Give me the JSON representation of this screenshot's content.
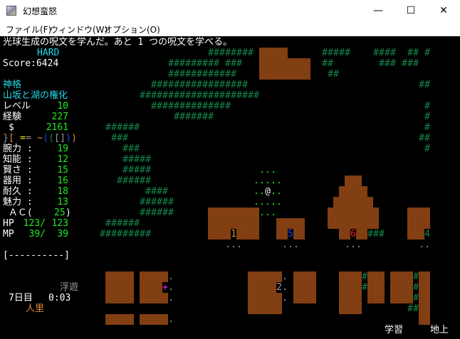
{
  "window": {
    "title": "幻想蛮怒",
    "controls": {
      "minimize": "—",
      "maximize": "☐",
      "close": "✕"
    }
  },
  "menu": [
    "ファイル(F)",
    "ウィンドウ(W)",
    "オプション(O)"
  ],
  "message": "光球生成の呪文を学んだ。あと 1 つの呪文を学べる。",
  "panel": {
    "difficulty": "HARD",
    "score": "Score:6424",
    "title": "神格",
    "race": "山坂と湖の権化",
    "level": {
      "label": "レベル",
      "value": "10"
    },
    "exp": {
      "label": "経験",
      "value": "227"
    },
    "gold": {
      "label": "$",
      "value": "2161"
    },
    "equipment": [
      {
        "ch": "}",
        "color": "#9a9a9a"
      },
      {
        "ch": "[",
        "color": "#e08a3a"
      },
      {
        "ch": " ",
        "color": "#000000"
      },
      {
        "ch": "=",
        "color": "#f0e020"
      },
      {
        "ch": "=",
        "color": "#9a9a9a"
      },
      {
        "ch": " ",
        "color": "#000000"
      },
      {
        "ch": "~",
        "color": "#e08a3a"
      },
      {
        "ch": "(",
        "color": "#2040ff"
      },
      {
        "ch": "(",
        "color": "#12874a"
      },
      {
        "ch": "[",
        "color": "#9a9a9a"
      },
      {
        "ch": "]",
        "color": "#9a9a9a"
      },
      {
        "ch": ")",
        "color": "#2040ff"
      },
      {
        "ch": ")",
        "color": "#e08a3a"
      }
    ],
    "stats": [
      {
        "label": "腕力 :",
        "value": "19"
      },
      {
        "label": "知能 :",
        "value": "12"
      },
      {
        "label": "賢さ :",
        "value": "15"
      },
      {
        "label": "器用 :",
        "value": "16"
      },
      {
        "label": "耐久 :",
        "value": "18"
      },
      {
        "label": "魅力 :",
        "value": "13"
      }
    ],
    "ac": {
      "label": " ＡＣ(",
      "value": "25",
      "close": ")"
    },
    "hp": {
      "label": "HP",
      "current": "123/",
      "max": "123"
    },
    "mp": {
      "label": "MP",
      "current": "39/",
      "max": "39"
    },
    "health_bar": "[----------]",
    "status": "浮遊",
    "day": "7日目",
    "time": "0:03",
    "location": "人里"
  },
  "bottom_status": {
    "study": "学習",
    "depth": "地上"
  },
  "map": {
    "tiles": {
      "#": {
        "glyph": "#",
        "color": "#12874a",
        "name": "tree-tile"
      },
      "%": {
        "glyph": "",
        "color": "#c8651f",
        "name": "wall-tile"
      },
      ".": {
        "glyph": ".",
        "color": "#22e822",
        "name": "lit-floor-tile"
      },
      ",": {
        "glyph": ".",
        "color": "#9a9a9a",
        "name": "floor-tile"
      },
      "@": {
        "glyph": "@",
        "color": "#ffffff",
        "name": "player"
      },
      "+": {
        "glyph": "+",
        "color": "#ff20ff",
        "name": "door-tile"
      },
      "a": {
        "glyph": "1",
        "color": "#e08a3a",
        "name": "shop-entrance-1"
      },
      "b": {
        "glyph": "5",
        "color": "#2040ff",
        "name": "shop-entrance-5"
      },
      "c": {
        "glyph": "6",
        "color": "#ee2020",
        "name": "shop-entrance-6"
      },
      "d": {
        "glyph": "4",
        "color": "#12874a",
        "name": "shop-entrance-4"
      },
      "e": {
        "glyph": "2",
        "color": "#9a9a9a",
        "name": "shop-entrance-2"
      }
    },
    "rows": [
      "",
      "                      ######## %%%%%      #####    ####  ## #",
      "               ######### ###   %%%%%%%%%  ##        ### ###",
      "               ############    %%%%%%%%%   ##",
      "            #################                              ##",
      "          #####################",
      "            ##############                                  #",
      "                #######                                     #",
      "    ######                                                  #",
      "     ###                                                   ##",
      "       ###                                                  #",
      "       #####",
      "       #####                   ...",
      "      ######                  .....           %%%",
      "           ####               ..@..          %%%%%",
      "          ######              .....         %%%%%%%",
      "          ######      %%%%%%%%%...         %%%%%%%%%     %%%%",
      "    ######            %%%%%%%%%   %%%%%    %%%%%%%%%     %%%%",
      "   #########          %%%%a%%%%   %%b%%      %%c%%###    %%%d",
      "                         ,,,       ,,,        ,,,          ,,",
      "",
      "",
      "    %%%%% %%%%%,             %%%%%%, %%%%    %%%%#%%% %%%%#%%",
      "    %%%%% %%%%+,             %%%%%e, %%%%    %%%%#%%% %%%%#%%",
      "    %%%%% %%%%%,             %%%%%%, %%%%    %%%% %%% %%%%#%%",
      "                             %%%%%%          %%%%        ##%%",
      "    %%%%% %%%%%,                                           %%",
      ""
    ]
  }
}
